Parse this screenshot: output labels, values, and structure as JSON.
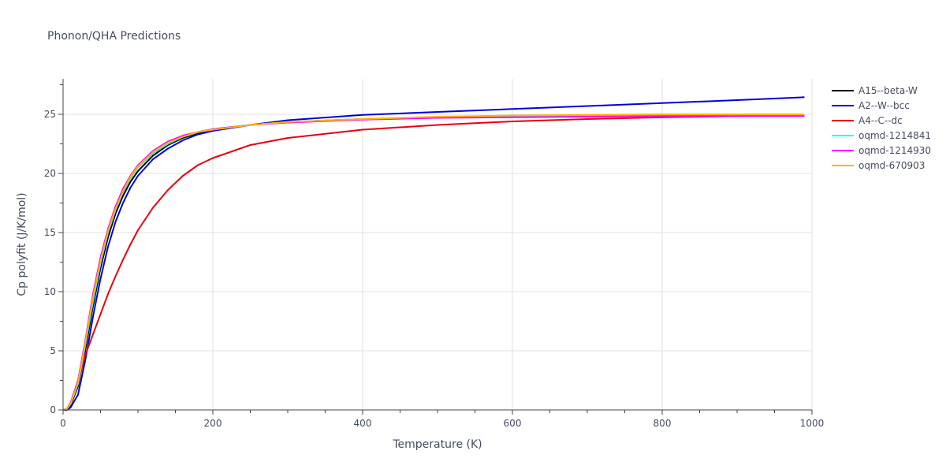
{
  "chart_data": {
    "type": "line",
    "title": "Phonon/QHA Predictions",
    "xlabel": "Temperature (K)",
    "ylabel": "Cp polyfit (J/K/mol)",
    "xlim": [
      0,
      1000
    ],
    "ylim": [
      0,
      28
    ],
    "xticks": [
      0,
      200,
      400,
      600,
      800,
      1000
    ],
    "yticks": [
      0,
      5,
      10,
      15,
      20,
      25
    ],
    "grid": true,
    "legend_position": "top-right",
    "x": [
      0,
      5,
      10,
      20,
      30,
      40,
      50,
      60,
      70,
      80,
      90,
      100,
      120,
      140,
      160,
      180,
      200,
      250,
      300,
      400,
      500,
      600,
      700,
      800,
      900,
      990
    ],
    "series": [
      {
        "name": "A15--beta-W",
        "color": "#000000",
        "values": [
          0,
          0.1,
          0.4,
          2.0,
          5.2,
          8.8,
          12.0,
          14.6,
          16.6,
          18.1,
          19.3,
          20.2,
          21.5,
          22.4,
          23.0,
          23.4,
          23.7,
          24.1,
          24.35,
          24.6,
          24.75,
          24.85,
          24.9,
          24.95,
          24.95,
          24.95
        ]
      },
      {
        "name": "A2--W--bcc",
        "color": "#0000dd",
        "values": [
          0,
          0.0,
          0.2,
          1.3,
          4.3,
          7.9,
          11.1,
          13.8,
          15.9,
          17.5,
          18.8,
          19.8,
          21.2,
          22.1,
          22.8,
          23.3,
          23.6,
          24.1,
          24.5,
          24.95,
          25.2,
          25.45,
          25.7,
          25.95,
          26.2,
          26.45
        ]
      },
      {
        "name": "A4--C--dc",
        "color": "#e8000b",
        "values": [
          0,
          0.1,
          0.5,
          2.3,
          4.7,
          6.4,
          8.1,
          9.8,
          11.3,
          12.7,
          14.0,
          15.2,
          17.1,
          18.6,
          19.8,
          20.7,
          21.3,
          22.4,
          23.0,
          23.7,
          24.1,
          24.4,
          24.6,
          24.75,
          24.85,
          24.9
        ]
      },
      {
        "name": "oqmd-1214841",
        "color": "#00ffff",
        "values": [
          0,
          0.1,
          0.5,
          2.2,
          5.6,
          9.2,
          12.4,
          15.0,
          16.9,
          18.4,
          19.6,
          20.5,
          21.7,
          22.5,
          23.1,
          23.5,
          23.75,
          24.1,
          24.35,
          24.6,
          24.75,
          24.8,
          24.85,
          24.9,
          24.9,
          24.9
        ]
      },
      {
        "name": "oqmd-1214930",
        "color": "#ff00ff",
        "values": [
          0,
          0.1,
          0.6,
          2.5,
          6.0,
          9.8,
          12.9,
          15.3,
          17.2,
          18.7,
          19.8,
          20.7,
          21.9,
          22.7,
          23.2,
          23.5,
          23.75,
          24.1,
          24.3,
          24.55,
          24.7,
          24.75,
          24.8,
          24.85,
          24.85,
          24.85
        ]
      },
      {
        "name": "oqmd-670903",
        "color": "#ffb300",
        "values": [
          0,
          0.1,
          0.5,
          2.3,
          5.8,
          9.5,
          12.6,
          15.1,
          17.0,
          18.5,
          19.7,
          20.6,
          21.8,
          22.6,
          23.1,
          23.5,
          23.7,
          24.1,
          24.35,
          24.6,
          24.8,
          24.9,
          24.95,
          25.0,
          25.0,
          25.0
        ]
      }
    ]
  }
}
